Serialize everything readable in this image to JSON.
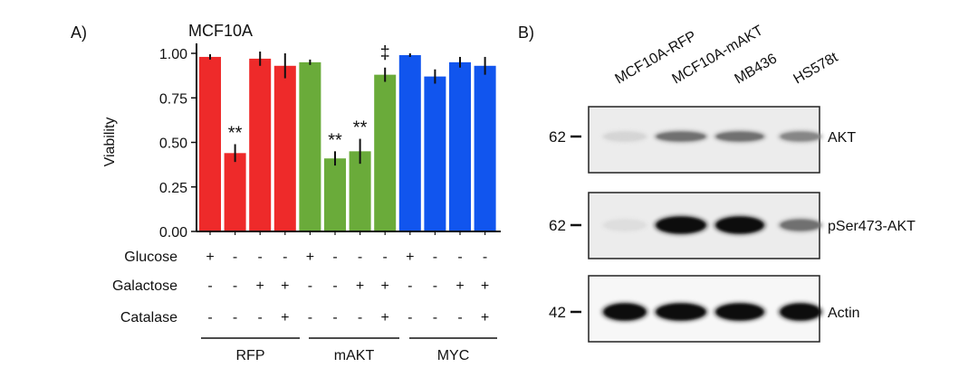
{
  "panel_a_label": "A)",
  "panel_b_label": "B)",
  "chart_data": {
    "type": "bar",
    "title": "MCF10A",
    "xlabel": "",
    "ylabel": "Viability",
    "ylim": [
      0,
      1.05
    ],
    "yticks": [
      "0.00",
      "0.25",
      "0.50",
      "0.75",
      "1.00"
    ],
    "series": [
      {
        "name": "RFP",
        "color": "#ee2a2a",
        "values": [
          0.98,
          0.44,
          0.97,
          0.93
        ],
        "errors": [
          0.015,
          0.05,
          0.04,
          0.07
        ],
        "marks": [
          "",
          "**",
          "",
          ""
        ]
      },
      {
        "name": "mAKT",
        "color": "#6aab3a",
        "values": [
          0.95,
          0.41,
          0.45,
          0.88
        ],
        "errors": [
          0.015,
          0.04,
          0.07,
          0.04
        ],
        "marks": [
          "",
          "**",
          "**",
          "‡"
        ]
      },
      {
        "name": "MYC",
        "color": "#1155ee",
        "values": [
          0.99,
          0.87,
          0.95,
          0.93
        ],
        "errors": [
          0.01,
          0.04,
          0.03,
          0.05
        ],
        "marks": [
          "",
          "",
          "",
          ""
        ]
      }
    ],
    "conditions": [
      {
        "name": "Glucose",
        "values": [
          "+",
          "-",
          "-",
          "-",
          "+",
          "-",
          "-",
          "-",
          "+",
          "-",
          "-",
          "-"
        ]
      },
      {
        "name": "Galactose",
        "values": [
          "-",
          "-",
          "+",
          "+",
          "-",
          "-",
          "+",
          "+",
          "-",
          "-",
          "+",
          "+"
        ]
      },
      {
        "name": "Catalase",
        "values": [
          "-",
          "-",
          "-",
          "+",
          "-",
          "-",
          "-",
          "+",
          "-",
          "-",
          "-",
          "+"
        ]
      }
    ],
    "group_labels": [
      "RFP",
      "mAKT",
      "MYC"
    ]
  },
  "blot": {
    "lanes": [
      "MCF10A-RFP",
      "MCF10A-mAKT",
      "MB436",
      "HS578t"
    ],
    "panels": [
      {
        "marker": "62",
        "label": "AKT",
        "intensity": [
          0.1,
          0.55,
          0.55,
          0.45
        ]
      },
      {
        "marker": "62",
        "label": "pSer473-AKT",
        "intensity": [
          0.06,
          1.0,
          1.0,
          0.55
        ]
      },
      {
        "marker": "42",
        "label": "Actin",
        "intensity": [
          1.0,
          1.0,
          1.0,
          1.0
        ]
      }
    ]
  }
}
